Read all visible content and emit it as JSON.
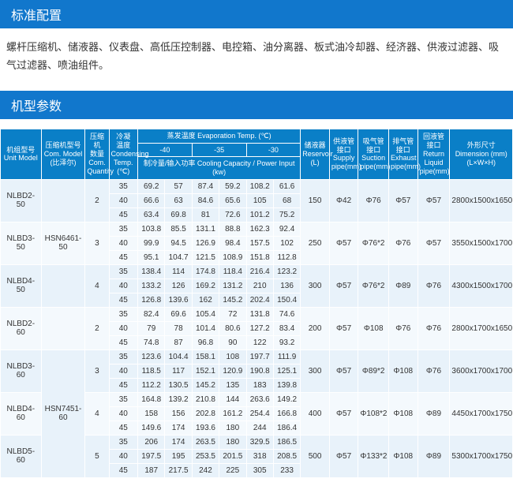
{
  "sections": {
    "config_title": "标准配置",
    "config_desc": "螺杆压缩机、储液器、仪表盘、高低压控制器、电控箱、油分离器、板式油冷却器、经济器、供液过滤器、吸气过滤器、喷油组件。",
    "params_title": "机型参数"
  },
  "headers": {
    "unit_model": "机组型号\nUnit Model",
    "com_model": "压缩机型号\nCom. Model\n(比泽尔)",
    "com_qty": "压缩机\n数量\nCom.\nQuantity",
    "cond_temp": "冷凝\n温度\nCondensing\nTemp. (℃)",
    "evap_temp": "蒸发温度  Evaporation Temp. (℃)",
    "t40": "-40",
    "t35": "-35",
    "t30": "-30",
    "cooling_power": "制冷量/输入功率  Cooling Capacity / Power Input (kw)",
    "reservoir": "储液器\nReservoir\n(L)",
    "supply": "供液管\n接口\nSupply\npipe(mm)",
    "suction": "吸气管\n接口\nSuction\npipe(mm)",
    "exhaust": "排气管\n接口\nExhaust\npipe(mm)",
    "return": "回液管\n接口\nReturn Liquid\npipe(mm)",
    "dimension": "外形尺寸\nDimension (mm)\n(L×W×H)"
  },
  "groups": [
    {
      "unit": "NLBD2-50",
      "com_model": "",
      "qty": "2",
      "reservoir": "150",
      "supply": "Φ42",
      "suction": "Φ76",
      "exhaust": "Φ57",
      "return": "Φ57",
      "dim": "2800x1500x1650",
      "rows": [
        {
          "ct": "35",
          "v": [
            "69.2",
            "57",
            "87.4",
            "59.2",
            "108.2",
            "61.6"
          ]
        },
        {
          "ct": "40",
          "v": [
            "66.6",
            "63",
            "84.6",
            "65.6",
            "105",
            "68"
          ]
        },
        {
          "ct": "45",
          "v": [
            "63.4",
            "69.8",
            "81",
            "72.6",
            "101.2",
            "75.2"
          ]
        }
      ],
      "band": 0
    },
    {
      "unit": "NLBD3-50",
      "com_model": "HSN6461-50",
      "qty": "3",
      "reservoir": "250",
      "supply": "Φ57",
      "suction": "Φ76*2",
      "exhaust": "Φ76",
      "return": "Φ57",
      "dim": "3550x1500x1700",
      "rows": [
        {
          "ct": "35",
          "v": [
            "103.8",
            "85.5",
            "131.1",
            "88.8",
            "162.3",
            "92.4"
          ]
        },
        {
          "ct": "40",
          "v": [
            "99.9",
            "94.5",
            "126.9",
            "98.4",
            "157.5",
            "102"
          ]
        },
        {
          "ct": "45",
          "v": [
            "95.1",
            "104.7",
            "121.5",
            "108.9",
            "151.8",
            "112.8"
          ]
        }
      ],
      "band": 1
    },
    {
      "unit": "NLBD4-50",
      "com_model": "",
      "qty": "4",
      "reservoir": "300",
      "supply": "Φ57",
      "suction": "Φ76*2",
      "exhaust": "Φ89",
      "return": "Φ76",
      "dim": "4300x1500x1700",
      "rows": [
        {
          "ct": "35",
          "v": [
            "138.4",
            "114",
            "174.8",
            "118.4",
            "216.4",
            "123.2"
          ]
        },
        {
          "ct": "40",
          "v": [
            "133.2",
            "126",
            "169.2",
            "131.2",
            "210",
            "136"
          ]
        },
        {
          "ct": "45",
          "v": [
            "126.8",
            "139.6",
            "162",
            "145.2",
            "202.4",
            "150.4"
          ]
        }
      ],
      "band": 0
    },
    {
      "unit": "NLBD2-60",
      "com_model": "",
      "qty": "2",
      "reservoir": "200",
      "supply": "Φ57",
      "suction": "Φ108",
      "exhaust": "Φ76",
      "return": "Φ76",
      "dim": "2800x1700x1650",
      "rows": [
        {
          "ct": "35",
          "v": [
            "82.4",
            "69.6",
            "105.4",
            "72",
            "131.8",
            "74.6"
          ]
        },
        {
          "ct": "40",
          "v": [
            "79",
            "78",
            "101.4",
            "80.6",
            "127.2",
            "83.4"
          ]
        },
        {
          "ct": "45",
          "v": [
            "74.8",
            "87",
            "96.8",
            "90",
            "122",
            "93.2"
          ]
        }
      ],
      "band": 1
    },
    {
      "unit": "NLBD3-60",
      "com_model": "",
      "qty": "3",
      "reservoir": "300",
      "supply": "Φ57",
      "suction": "Φ89*2",
      "exhaust": "Φ108",
      "return": "Φ76",
      "dim": "3600x1700x1700",
      "rows": [
        {
          "ct": "35",
          "v": [
            "123.6",
            "104.4",
            "158.1",
            "108",
            "197.7",
            "111.9"
          ]
        },
        {
          "ct": "40",
          "v": [
            "118.5",
            "117",
            "152.1",
            "120.9",
            "190.8",
            "125.1"
          ]
        },
        {
          "ct": "45",
          "v": [
            "112.2",
            "130.5",
            "145.2",
            "135",
            "183",
            "139.8"
          ]
        }
      ],
      "band": 0,
      "com_model_span": "HSN7451-60",
      "com_model_rows": 9
    },
    {
      "unit": "NLBD4-60",
      "com_model": "",
      "qty": "4",
      "reservoir": "400",
      "supply": "Φ57",
      "suction": "Φ108*2",
      "exhaust": "Φ108",
      "return": "Φ89",
      "dim": "4450x1700x1750",
      "rows": [
        {
          "ct": "35",
          "v": [
            "164.8",
            "139.2",
            "210.8",
            "144",
            "263.6",
            "149.2"
          ]
        },
        {
          "ct": "40",
          "v": [
            "158",
            "156",
            "202.8",
            "161.2",
            "254.4",
            "166.8"
          ]
        },
        {
          "ct": "45",
          "v": [
            "149.6",
            "174",
            "193.6",
            "180",
            "244",
            "186.4"
          ]
        }
      ],
      "band": 1
    },
    {
      "unit": "NLBD5-60",
      "com_model": "",
      "qty": "5",
      "reservoir": "500",
      "supply": "Φ57",
      "suction": "Φ133*2",
      "exhaust": "Φ108",
      "return": "Φ89",
      "dim": "5300x1700x1750",
      "rows": [
        {
          "ct": "35",
          "v": [
            "206",
            "174",
            "263.5",
            "180",
            "329.5",
            "186.5"
          ]
        },
        {
          "ct": "40",
          "v": [
            "197.5",
            "195",
            "253.5",
            "201.5",
            "318",
            "208.5"
          ]
        },
        {
          "ct": "45",
          "v": [
            "187",
            "217.5",
            "242",
            "225",
            "305",
            "233"
          ]
        }
      ],
      "band": 0
    }
  ],
  "colors": {
    "header_bg": "#0a7fc7",
    "band0": "#e8f2fa",
    "band1": "#f4f9fd"
  }
}
